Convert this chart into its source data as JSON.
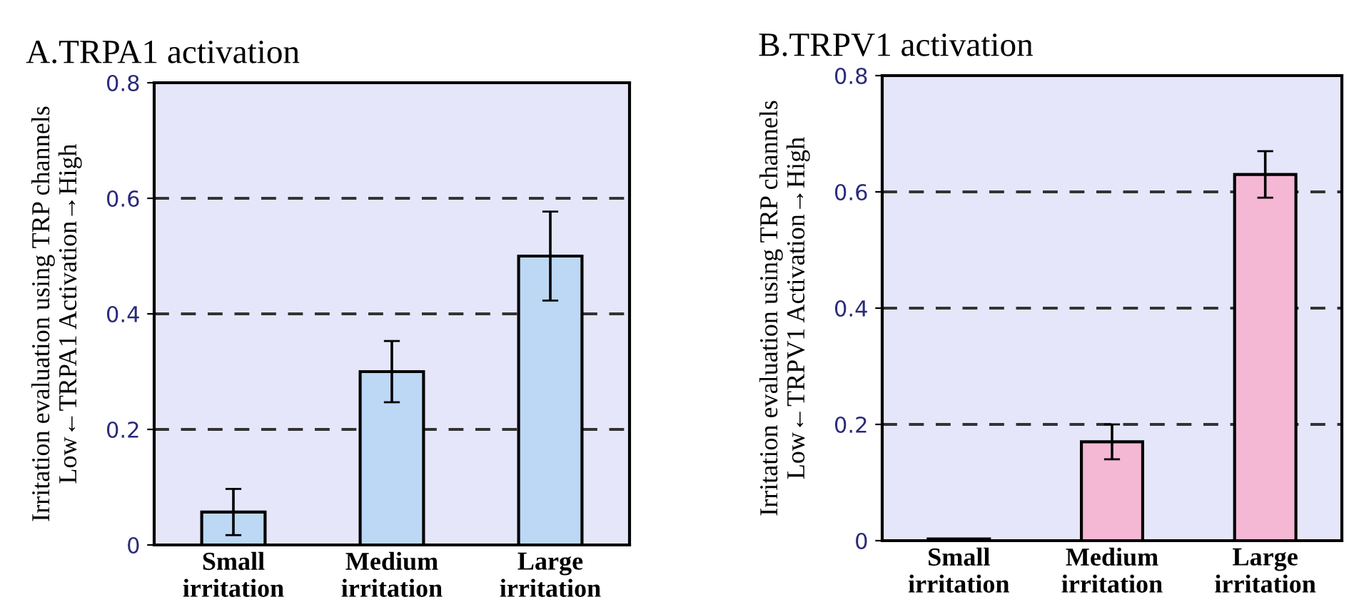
{
  "chart_data": [
    {
      "type": "bar",
      "title": "A.TRPA1 activation",
      "ylabel": "Irritation evaluation using TRP channels\nLow←TRPA1 Activation→High",
      "categories": [
        "Small\nirritation",
        "Medium\nirritation",
        "Large\nirritation"
      ],
      "values": [
        0.057,
        0.3,
        0.5
      ],
      "errors": [
        0.04,
        0.053,
        0.077
      ],
      "color": "#bcd8f5",
      "ylim": [
        0,
        0.8
      ],
      "yticks": [
        0,
        0.2,
        0.4,
        0.6,
        0.8
      ],
      "grid": "y"
    },
    {
      "type": "bar",
      "title": "B.TRPV1 activation",
      "ylabel": "Irritation evaluation using TRP channels\nLow←TRPV1 Activation→High",
      "categories": [
        "Small\nirritation",
        "Medium\nirritation",
        "Large\nirritation"
      ],
      "values": [
        0.003,
        0.17,
        0.63
      ],
      "errors": [
        null,
        0.03,
        0.04
      ],
      "color": "#f5b8d4",
      "ylim": [
        0,
        0.8
      ],
      "yticks": [
        0,
        0.2,
        0.4,
        0.6,
        0.8
      ],
      "grid": "y"
    }
  ]
}
